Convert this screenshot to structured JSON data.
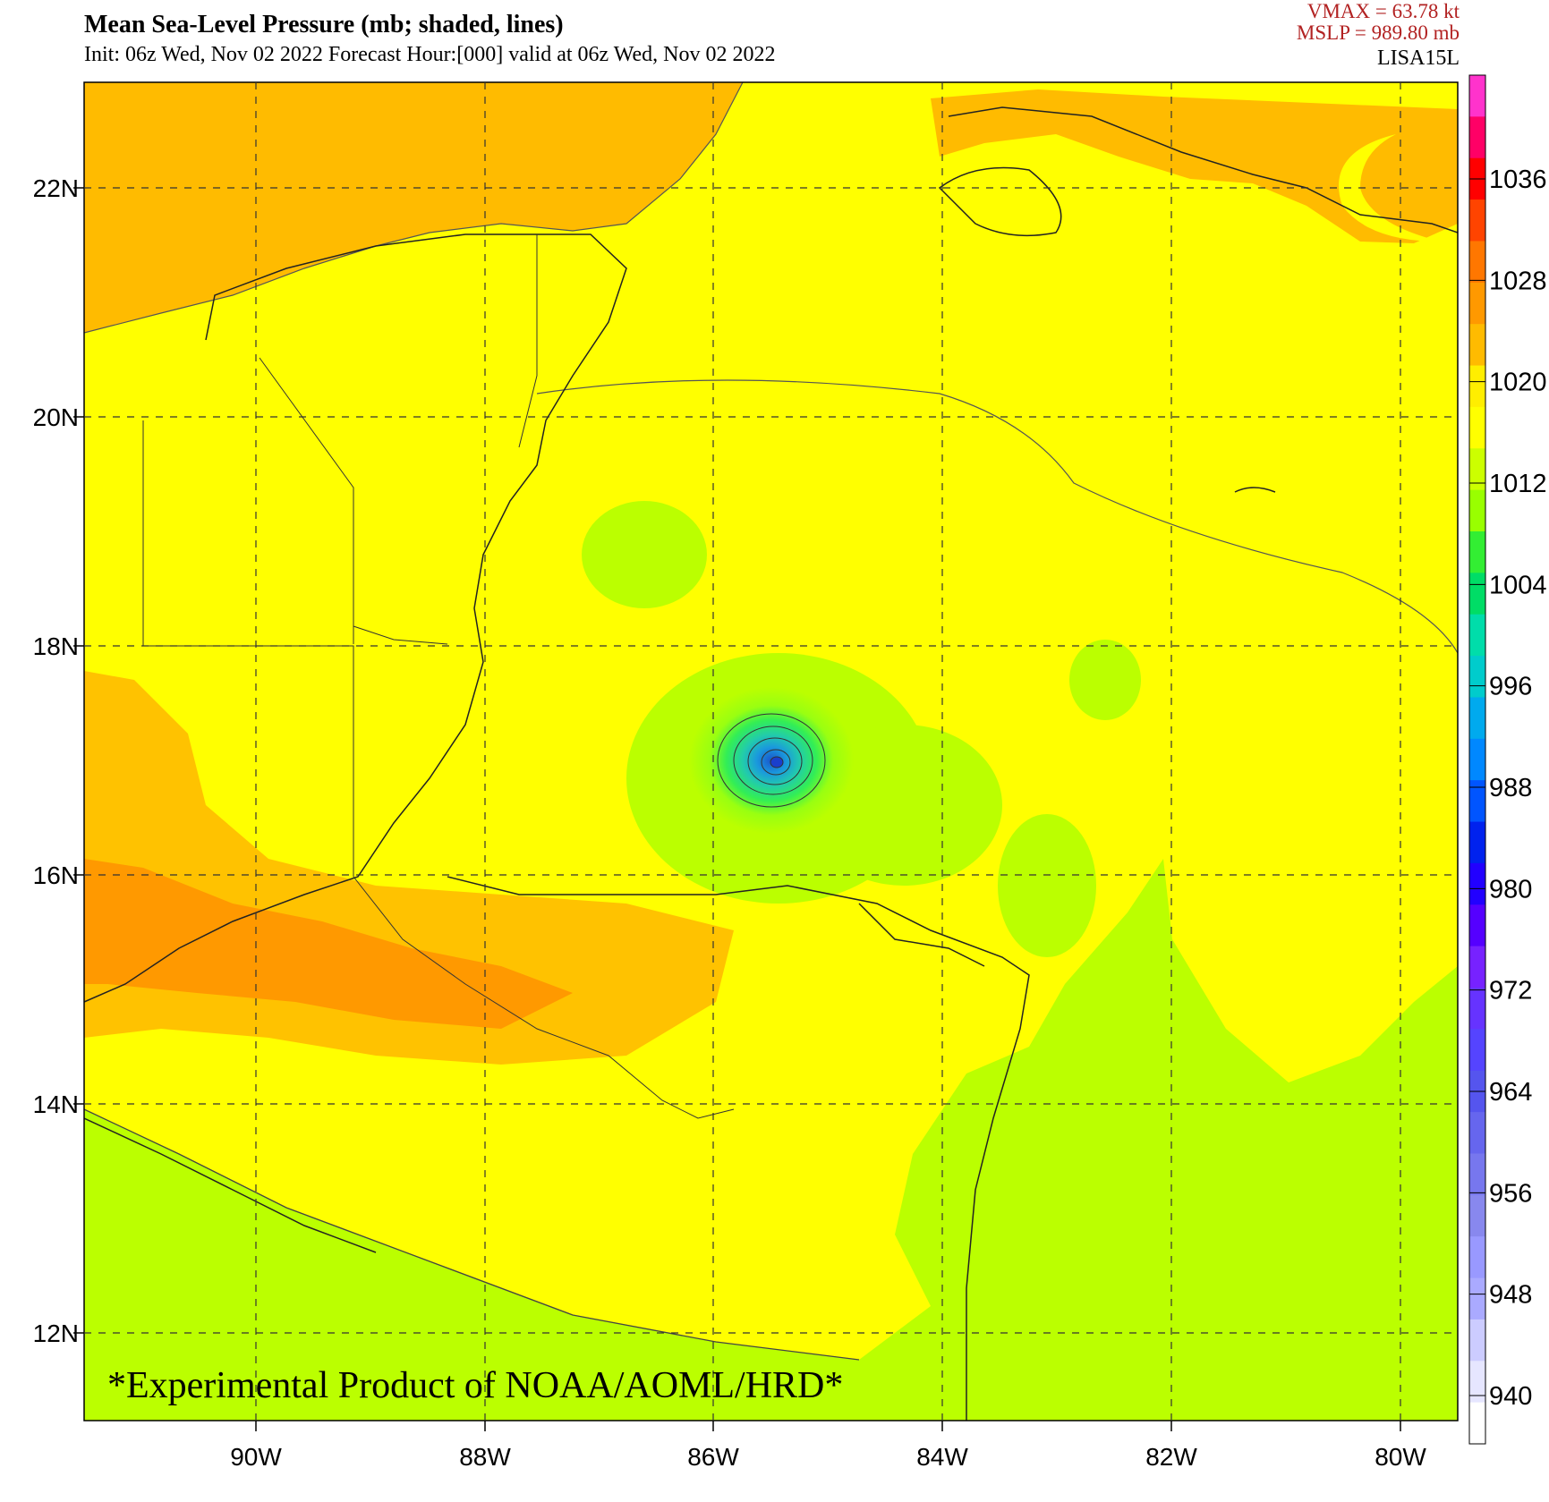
{
  "header": {
    "title": "Mean Sea-Level Pressure (mb; shaded, lines)",
    "subtitle": "Init: 06z Wed, Nov 02 2022  Forecast Hour:[000]  valid at 06z Wed, Nov 02 2022",
    "vmax": "VMAX =   63.78 kt",
    "mslp": "MSLP =  989.80 mb",
    "storm_id": "LISA15L"
  },
  "map": {
    "lon_labels": [
      "90W",
      "88W",
      "86W",
      "84W",
      "82W",
      "80W"
    ],
    "lat_labels": [
      "22N",
      "20N",
      "18N",
      "16N",
      "14N",
      "12N"
    ],
    "watermark": "*Experimental Product of NOAA/AOML/HRD*",
    "storm_center": {
      "lon": -85.45,
      "lat": 16.95,
      "min_pressure_mb": 989.8
    }
  },
  "colorbar": {
    "labels": [
      "1036",
      "1028",
      "1020",
      "1012",
      "1004",
      "996",
      "988",
      "980",
      "972",
      "964",
      "956",
      "948",
      "940"
    ],
    "colors": [
      "#ff33cc",
      "#ff0066",
      "#ff0000",
      "#ff4400",
      "#ff7700",
      "#ff9900",
      "#ffbb00",
      "#ffee00",
      "#ffff00",
      "#ccff00",
      "#99ff00",
      "#33ee33",
      "#00dd66",
      "#00ddaa",
      "#00cccc",
      "#00aaee",
      "#0088ff",
      "#0055ff",
      "#0022ee",
      "#2200ff",
      "#5500ff",
      "#7722ff",
      "#6633ff",
      "#5544ff",
      "#5555ee",
      "#6666ee",
      "#7777ee",
      "#8888ee",
      "#9999ff",
      "#aaaaff",
      "#ccccff",
      "#e6e6ff",
      "#ffffff"
    ]
  }
}
